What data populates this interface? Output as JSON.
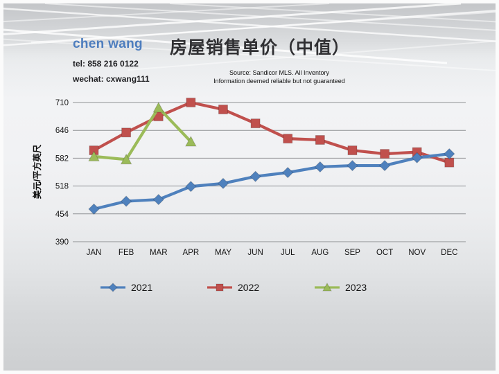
{
  "slide": {
    "agent": {
      "name": "chen wang",
      "tel": "tel: 858 216 0122",
      "wechat": "wechat: cxwang111"
    },
    "title": "房屋销售单价（中值）",
    "source_line1": "Source: Sandicor MLS. All Inventory",
    "source_line2": "Information deemed reliable but not guaranteed"
  },
  "colors": {
    "agent_name": "#4d7dbe",
    "title_text": "#303033",
    "gridline": "#8f9194",
    "series_2021": "#4f81bd",
    "series_2022": "#c0504d",
    "series_2023": "#9bbb59"
  },
  "chart_data": {
    "type": "line",
    "title": "房屋销售单价（中值）",
    "ylabel": "美元/平方英尺",
    "xlabel": "",
    "ylim": [
      390,
      710
    ],
    "yticks": [
      390,
      454,
      518,
      582,
      646,
      710
    ],
    "grid": true,
    "legend_position": "bottom",
    "categories": [
      "JAN",
      "FEB",
      "MAR",
      "APR",
      "MAY",
      "JUN",
      "JUL",
      "AUG",
      "SEP",
      "OCT",
      "NOV",
      "DEC"
    ],
    "series": [
      {
        "name": "2021",
        "color": "#4f81bd",
        "marker": "diamond",
        "z": 3,
        "values": [
          465,
          483,
          487,
          517,
          524,
          540,
          549,
          562,
          565,
          565,
          583,
          592
        ]
      },
      {
        "name": "2022",
        "color": "#c0504d",
        "marker": "square",
        "z": 1,
        "values": [
          600,
          641,
          678,
          710,
          694,
          662,
          627,
          624,
          600,
          592,
          596,
          572
        ]
      },
      {
        "name": "2023",
        "color": "#9bbb59",
        "marker": "triangle",
        "z": 2,
        "values": [
          586,
          579,
          698,
          620,
          null,
          null,
          null,
          null,
          null,
          null,
          null,
          null
        ]
      }
    ]
  }
}
